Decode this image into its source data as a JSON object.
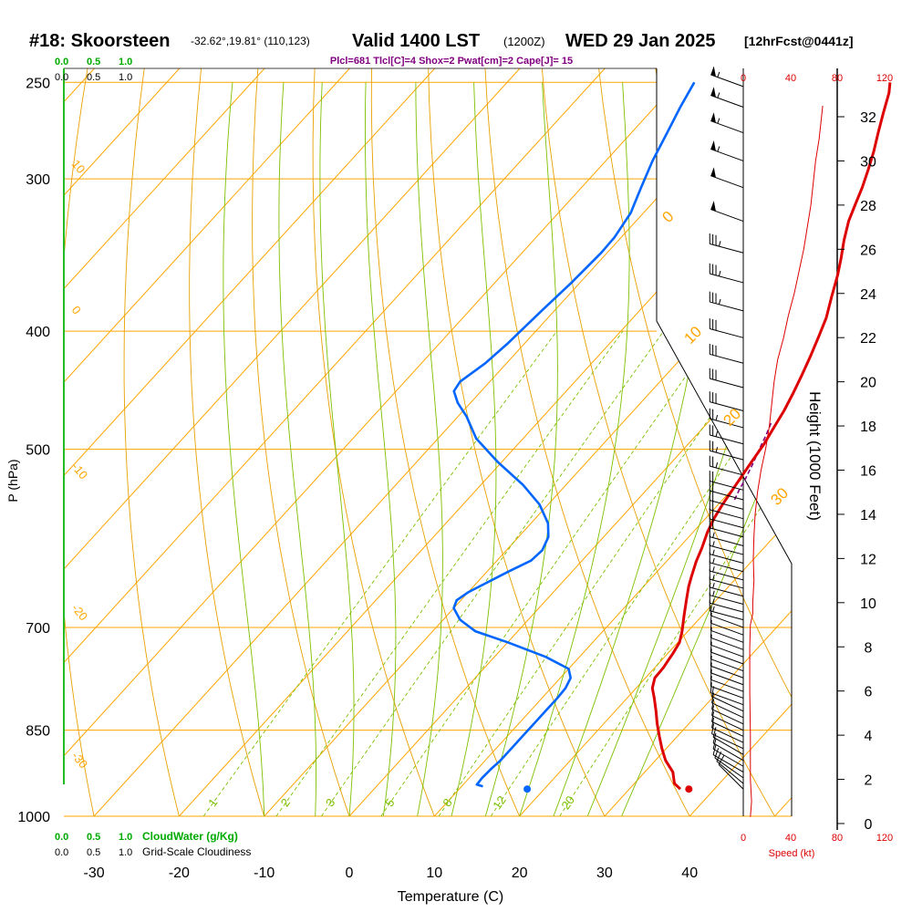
{
  "header": {
    "station": "#18: Skoorsteen",
    "coords": "-32.62°,19.81° (110,123)",
    "valid": "Valid 1400 LST",
    "utc": "(1200Z)",
    "date": "WED 29 Jan 2025",
    "fcst": "[12hrFcst@0441z]"
  },
  "indices": "Plcl=681 Tlcl[C]=4 Shox=2 Pwat[cm]=2 Cape[J]= 15",
  "colors": {
    "isotherm": "#ffa500",
    "dry_adiabat": "#e8a000",
    "moist_adiabat": "#7cc000",
    "mixing_ratio": "#7cc000",
    "temperature": "#dd0000",
    "dewpoint": "#0066ff",
    "parcel": "#800080",
    "cloud": "#00aa00",
    "speed": "#dd0000",
    "title": "#000000"
  },
  "chart_data": {
    "type": "line",
    "title": "#18: Skoorsteen",
    "xlabel": "Temperature (C)",
    "ylabel": "P (hPa)",
    "y2label": "Height (1000 Feet)",
    "pressure_ticks": [
      "250",
      "300",
      "400",
      "500",
      "700",
      "850",
      "1000"
    ],
    "pressure_values": [
      250,
      300,
      400,
      500,
      700,
      850,
      1000
    ],
    "temp_ticks": [
      "-30",
      "-20",
      "-10",
      "0",
      "10",
      "20",
      "30",
      "40"
    ],
    "temp_values": [
      -30,
      -20,
      -10,
      0,
      10,
      20,
      30,
      40
    ],
    "height_ticks": [
      "32",
      "30",
      "28",
      "26",
      "24",
      "22",
      "20",
      "18",
      "16",
      "14",
      "12",
      "10",
      "8",
      "6",
      "4",
      "2",
      "0"
    ],
    "isotherm_labels": [
      "10",
      "0",
      "-10",
      "-20",
      "-30"
    ],
    "isotherm_label_temps": [
      10,
      0,
      -10,
      -20,
      -30
    ],
    "dry_adiabat_labels": [
      "0",
      "10",
      "20",
      "30"
    ],
    "mixing_ratio_labels": [
      "1",
      "2",
      "3",
      "5",
      "8",
      "12",
      "20"
    ],
    "mixing_ratio_values": [
      1,
      2,
      3,
      5,
      8,
      12,
      20
    ],
    "cloud_top_ticks": [
      "0.0",
      "0.5",
      "1.0"
    ],
    "cloud_legend_left": "0.0   0.5   1.0",
    "cloud_water_label": "CloudWater (g/Kg)",
    "gs_cloud_label": "Grid-Scale Cloudiness",
    "speed_ticks": [
      "0",
      "40",
      "80",
      "120"
    ],
    "speed_label": "Speed (kt)",
    "series": [
      {
        "name": "Temperature",
        "points": [
          [
            36.0,
            950
          ],
          [
            34.7,
            940
          ],
          [
            33.3,
            920
          ],
          [
            31.2,
            900
          ],
          [
            29.5,
            880
          ],
          [
            27.9,
            860
          ],
          [
            26.3,
            840
          ],
          [
            24.8,
            820
          ],
          [
            23.2,
            800
          ],
          [
            21.9,
            785
          ],
          [
            21.1,
            770
          ],
          [
            21.0,
            755
          ],
          [
            20.8,
            745
          ],
          [
            20.6,
            735
          ],
          [
            20.2,
            720
          ],
          [
            19.3,
            705
          ],
          [
            17.9,
            685
          ],
          [
            16.5,
            665
          ],
          [
            15.3,
            648
          ],
          [
            14.5,
            635
          ],
          [
            13.5,
            618
          ],
          [
            12.7,
            602
          ],
          [
            11.7,
            585
          ],
          [
            11.0,
            570
          ],
          [
            10.5,
            555
          ],
          [
            10.1,
            540
          ],
          [
            9.7,
            525
          ],
          [
            9.3,
            510
          ],
          [
            8.9,
            495
          ],
          [
            8.3,
            480
          ],
          [
            7.7,
            465
          ],
          [
            6.9,
            450
          ],
          [
            6.0,
            435
          ],
          [
            5.0,
            420
          ],
          [
            3.9,
            405
          ],
          [
            2.7,
            390
          ],
          [
            1.1,
            375
          ],
          [
            -0.5,
            360
          ],
          [
            -2.0,
            348
          ],
          [
            -3.5,
            337
          ],
          [
            -5.0,
            325
          ],
          [
            -6.0,
            315
          ],
          [
            -7.0,
            305
          ],
          [
            -8.2,
            295
          ],
          [
            -9.5,
            285
          ],
          [
            -11.0,
            275
          ],
          [
            -12.5,
            265
          ],
          [
            -14.0,
            255
          ],
          [
            -15.0,
            250
          ]
        ]
      },
      {
        "name": "Dewpoint",
        "points": [
          [
            12.5,
            945
          ],
          [
            11.6,
            942
          ],
          [
            11.5,
            930
          ],
          [
            11.6,
            915
          ],
          [
            11.8,
            900
          ],
          [
            11.8,
            880
          ],
          [
            11.8,
            860
          ],
          [
            11.8,
            840
          ],
          [
            11.8,
            820
          ],
          [
            11.8,
            800
          ],
          [
            11.7,
            785
          ],
          [
            11.2,
            770
          ],
          [
            10.0,
            757
          ],
          [
            6.0,
            740
          ],
          [
            0.0,
            720
          ],
          [
            -5.0,
            705
          ],
          [
            -8.0,
            690
          ],
          [
            -10.0,
            675
          ],
          [
            -10.5,
            665
          ],
          [
            -10.0,
            655
          ],
          [
            -9.0,
            645
          ],
          [
            -7.5,
            630
          ],
          [
            -6.0,
            617
          ],
          [
            -5.8,
            605
          ],
          [
            -6.5,
            590
          ],
          [
            -8.0,
            575
          ],
          [
            -11.0,
            555
          ],
          [
            -15.0,
            535
          ],
          [
            -20.5,
            512
          ],
          [
            -25.5,
            490
          ],
          [
            -29.0,
            470
          ],
          [
            -31.5,
            458
          ],
          [
            -33.2,
            448
          ],
          [
            -33.5,
            440
          ],
          [
            -32.5,
            425
          ],
          [
            -32.0,
            410
          ],
          [
            -31.8,
            400
          ],
          [
            -31.5,
            385
          ],
          [
            -31.0,
            365
          ],
          [
            -30.7,
            345
          ],
          [
            -30.8,
            335
          ],
          [
            -31.5,
            320
          ],
          [
            -33.0,
            305
          ],
          [
            -34.5,
            290
          ],
          [
            -35.8,
            275
          ],
          [
            -37.0,
            262
          ],
          [
            -38.0,
            250
          ]
        ]
      },
      {
        "name": "Parcel",
        "points": [
          [
            11.4,
            550
          ],
          [
            10.9,
            540
          ],
          [
            10.4,
            528
          ],
          [
            9.6,
            512
          ],
          [
            8.9,
            500
          ],
          [
            8.2,
            487
          ],
          [
            7.5,
            476
          ]
        ]
      }
    ],
    "surface_temp": 37.0,
    "surface_dewpoint": 18.0,
    "surface_pressure": 950,
    "speed_profile": [
      [
        6,
        0.3
      ],
      [
        7,
        1
      ],
      [
        6,
        2
      ],
      [
        6,
        4
      ],
      [
        5.5,
        6
      ],
      [
        5.5,
        8
      ],
      [
        6,
        9
      ],
      [
        8,
        9.5
      ],
      [
        8,
        10
      ],
      [
        9,
        11
      ],
      [
        8.5,
        12
      ],
      [
        9,
        13
      ],
      [
        10,
        14
      ],
      [
        12,
        15
      ],
      [
        15,
        16
      ],
      [
        19,
        17
      ],
      [
        22,
        18
      ],
      [
        24,
        19
      ],
      [
        26,
        20
      ],
      [
        29,
        21
      ],
      [
        34,
        22
      ],
      [
        38,
        23
      ],
      [
        43,
        24
      ],
      [
        47,
        25
      ],
      [
        51,
        26
      ],
      [
        54,
        27
      ],
      [
        57,
        28
      ],
      [
        59,
        29
      ],
      [
        61,
        30
      ],
      [
        64,
        31
      ],
      [
        66,
        32
      ],
      [
        67,
        32.5
      ]
    ],
    "wind_barbs": [
      {
        "p": 950,
        "dir": 315,
        "spd": 10
      },
      {
        "p": 940,
        "dir": 310,
        "spd": 10
      },
      {
        "p": 930,
        "dir": 305,
        "spd": 10
      },
      {
        "p": 920,
        "dir": 300,
        "spd": 10
      },
      {
        "p": 910,
        "dir": 300,
        "spd": 10
      },
      {
        "p": 900,
        "dir": 300,
        "spd": 10
      },
      {
        "p": 890,
        "dir": 300,
        "spd": 10
      },
      {
        "p": 880,
        "dir": 295,
        "spd": 10
      },
      {
        "p": 870,
        "dir": 295,
        "spd": 10
      },
      {
        "p": 860,
        "dir": 295,
        "spd": 10
      },
      {
        "p": 850,
        "dir": 295,
        "spd": 10
      },
      {
        "p": 840,
        "dir": 295,
        "spd": 10
      },
      {
        "p": 830,
        "dir": 295,
        "spd": 10
      },
      {
        "p": 820,
        "dir": 295,
        "spd": 10
      },
      {
        "p": 810,
        "dir": 290,
        "spd": 10
      },
      {
        "p": 800,
        "dir": 290,
        "spd": 10
      },
      {
        "p": 790,
        "dir": 290,
        "spd": 10
      },
      {
        "p": 780,
        "dir": 290,
        "spd": 10
      },
      {
        "p": 770,
        "dir": 290,
        "spd": 10
      },
      {
        "p": 760,
        "dir": 290,
        "spd": 10
      },
      {
        "p": 750,
        "dir": 290,
        "spd": 10
      },
      {
        "p": 740,
        "dir": 290,
        "spd": 10
      },
      {
        "p": 730,
        "dir": 290,
        "spd": 10
      },
      {
        "p": 720,
        "dir": 290,
        "spd": 10
      },
      {
        "p": 710,
        "dir": 290,
        "spd": 10
      },
      {
        "p": 700,
        "dir": 290,
        "spd": 10
      },
      {
        "p": 690,
        "dir": 285,
        "spd": 15
      },
      {
        "p": 680,
        "dir": 285,
        "spd": 15
      },
      {
        "p": 670,
        "dir": 285,
        "spd": 15
      },
      {
        "p": 660,
        "dir": 285,
        "spd": 15
      },
      {
        "p": 650,
        "dir": 285,
        "spd": 15
      },
      {
        "p": 640,
        "dir": 285,
        "spd": 15
      },
      {
        "p": 630,
        "dir": 285,
        "spd": 15
      },
      {
        "p": 620,
        "dir": 285,
        "spd": 15
      },
      {
        "p": 610,
        "dir": 285,
        "spd": 15
      },
      {
        "p": 600,
        "dir": 285,
        "spd": 15
      },
      {
        "p": 590,
        "dir": 285,
        "spd": 20
      },
      {
        "p": 580,
        "dir": 285,
        "spd": 20
      },
      {
        "p": 570,
        "dir": 285,
        "spd": 20
      },
      {
        "p": 560,
        "dir": 285,
        "spd": 20
      },
      {
        "p": 550,
        "dir": 285,
        "spd": 20
      },
      {
        "p": 540,
        "dir": 285,
        "spd": 20
      },
      {
        "p": 525,
        "dir": 285,
        "spd": 25
      },
      {
        "p": 510,
        "dir": 285,
        "spd": 25
      },
      {
        "p": 495,
        "dir": 285,
        "spd": 25
      },
      {
        "p": 480,
        "dir": 285,
        "spd": 25
      },
      {
        "p": 465,
        "dir": 285,
        "spd": 30
      },
      {
        "p": 445,
        "dir": 285,
        "spd": 30
      },
      {
        "p": 425,
        "dir": 285,
        "spd": 30
      },
      {
        "p": 405,
        "dir": 285,
        "spd": 30
      },
      {
        "p": 385,
        "dir": 285,
        "spd": 35
      },
      {
        "p": 365,
        "dir": 285,
        "spd": 35
      },
      {
        "p": 345,
        "dir": 285,
        "spd": 35
      },
      {
        "p": 325,
        "dir": 290,
        "spd": 50
      },
      {
        "p": 305,
        "dir": 290,
        "spd": 50
      },
      {
        "p": 290,
        "dir": 290,
        "spd": 55
      },
      {
        "p": 275,
        "dir": 290,
        "spd": 55
      },
      {
        "p": 262,
        "dir": 290,
        "spd": 55
      },
      {
        "p": 252,
        "dir": 290,
        "spd": 55
      }
    ]
  }
}
